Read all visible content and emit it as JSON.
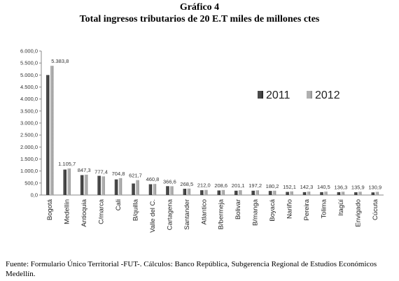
{
  "header": {
    "label": "Gráfico 4",
    "title": "Total ingresos tributarios de 20 E.T miles de millones ctes"
  },
  "source": "Fuente: Formulario Único Territorial -FUT-. Cálculos: Banco República, Subgerencia Regional de Estudios Económicos Medellín.",
  "colors": {
    "series_2011": "#4a4a4a",
    "series_2012": "#b0b0b0",
    "axis": "#888888"
  },
  "chart_data": {
    "type": "bar",
    "categories": [
      "Bogotá",
      "Medellín",
      "Antioquia",
      "C/marca",
      "Cali",
      "B/quilla",
      "Valle del C.",
      "Cartagena",
      "Santander",
      "Atlantico",
      "B/bermeja",
      "Bolivar",
      "B/manga",
      "Boyacá",
      "Nariño",
      "Pereira",
      "Tolima",
      "Itagüí",
      "Envigado",
      "Cúcuta"
    ],
    "series": [
      {
        "name": "2011",
        "values": [
          5000,
          1060,
          830,
          800,
          650,
          480,
          450,
          370,
          260,
          200,
          190,
          180,
          180,
          170,
          130,
          120,
          120,
          120,
          115,
          110
        ]
      },
      {
        "name": "2012",
        "values": [
          5383.8,
          1105.7,
          847.3,
          777.4,
          704.8,
          621.7,
          460.8,
          366.6,
          268.5,
          212.0,
          208.6,
          201.1,
          197.2,
          180.2,
          152.1,
          142.3,
          140.5,
          136.3,
          135.9,
          130.9
        ]
      }
    ],
    "data_labels": [
      "5.383,8",
      "1.105,7",
      "847,3",
      "777,4",
      "704,8",
      "621,7",
      "460,8",
      "366,6",
      "268,5",
      "212,0",
      "208,6",
      "201,1",
      "197,2",
      "180,2",
      "152,1",
      "142,3",
      "140,5",
      "136,3",
      "135,9",
      "130,9"
    ],
    "yticks": [
      0,
      500,
      1000,
      1500,
      2000,
      2500,
      3000,
      3500,
      4000,
      4500,
      5000,
      5500,
      6000
    ],
    "ytick_labels": [
      "0,0",
      "500,0",
      "1.000,0",
      "1.500,0",
      "2.000,0",
      "2.500,0",
      "3.000,0",
      "3.500,0",
      "4.000,0",
      "4.500,0",
      "5.000,0",
      "5.500,0",
      "6.000,0"
    ],
    "ylim": [
      0,
      6000
    ],
    "legend": {
      "position": "right",
      "labels": [
        "2011",
        "2012"
      ]
    },
    "grid": false
  }
}
